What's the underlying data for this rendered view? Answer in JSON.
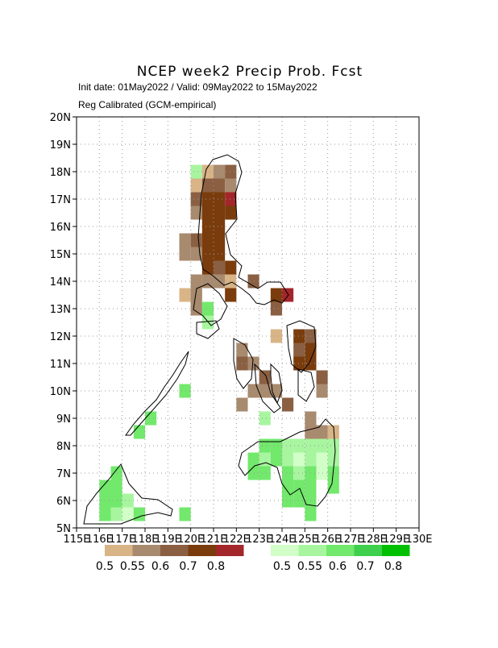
{
  "map": {
    "title": "NCEP week2 Precip Prob. Fcst",
    "subtitle": "Init date: 01May2022 / Valid: 09May2022 to 15May2022",
    "note": "Reg Calibrated (GCM-empirical)",
    "lonlim": [
      115,
      130
    ],
    "latlim": [
      5,
      20
    ],
    "lon_ticks": [
      {
        "value": 115,
        "label": "115E"
      },
      {
        "value": 116,
        "label": "116E"
      },
      {
        "value": 117,
        "label": "117E"
      },
      {
        "value": 118,
        "label": "118E"
      },
      {
        "value": 119,
        "label": "119E"
      },
      {
        "value": 120,
        "label": "120E"
      },
      {
        "value": 121,
        "label": "121E"
      },
      {
        "value": 122,
        "label": "122E"
      },
      {
        "value": 123,
        "label": "123E"
      },
      {
        "value": 124,
        "label": "124E"
      },
      {
        "value": 125,
        "label": "125E"
      },
      {
        "value": 126,
        "label": "126E"
      },
      {
        "value": 127,
        "label": "127E"
      },
      {
        "value": 128,
        "label": "128E"
      },
      {
        "value": 129,
        "label": "129E"
      },
      {
        "value": 130,
        "label": "130E"
      }
    ],
    "lat_ticks": [
      {
        "value": 5,
        "label": "5N"
      },
      {
        "value": 6,
        "label": "6N"
      },
      {
        "value": 7,
        "label": "7N"
      },
      {
        "value": 8,
        "label": "8N"
      },
      {
        "value": 9,
        "label": "9N"
      },
      {
        "value": 10,
        "label": "10N"
      },
      {
        "value": 11,
        "label": "11N"
      },
      {
        "value": 12,
        "label": "12N"
      },
      {
        "value": 13,
        "label": "13N"
      },
      {
        "value": 14,
        "label": "14N"
      },
      {
        "value": 15,
        "label": "15N"
      },
      {
        "value": 16,
        "label": "16N"
      },
      {
        "value": 17,
        "label": "17N"
      },
      {
        "value": 18,
        "label": "18N"
      },
      {
        "value": 19,
        "label": "19N"
      },
      {
        "value": 20,
        "label": "20N"
      }
    ],
    "legends": [
      {
        "colors": [
          "#d8b487",
          "#a88a6e",
          "#8a5f42",
          "#7a3c0c",
          "#a3262b"
        ],
        "labels": [
          "0.5",
          "0.55",
          "0.6",
          "0.7",
          "0.8"
        ]
      },
      {
        "colors": [
          "#d2ffc8",
          "#a8f5a0",
          "#72e86c",
          "#3ed04c",
          "#00c000"
        ],
        "labels": [
          "0.5",
          "0.55",
          "0.6",
          "0.7",
          "0.8"
        ]
      }
    ],
    "cell_size": 0.5,
    "cells": [
      [
        120.25,
        18,
        1,
        1
      ],
      [
        120.75,
        18,
        0,
        0
      ],
      [
        121.25,
        18,
        0,
        1
      ],
      [
        121.75,
        18,
        0,
        2
      ],
      [
        120.25,
        17.5,
        0,
        0
      ],
      [
        120.75,
        17.5,
        0,
        2
      ],
      [
        121.25,
        17.5,
        0,
        2
      ],
      [
        121.75,
        17.5,
        0,
        1
      ],
      [
        120.25,
        17,
        0,
        2
      ],
      [
        120.75,
        17,
        0,
        3
      ],
      [
        121.25,
        17,
        0,
        3
      ],
      [
        121.75,
        17,
        0,
        4
      ],
      [
        120.25,
        16.5,
        0,
        1
      ],
      [
        120.75,
        16.5,
        0,
        3
      ],
      [
        121.25,
        16.5,
        0,
        3
      ],
      [
        121.75,
        16.5,
        0,
        3
      ],
      [
        120.75,
        16,
        0,
        3
      ],
      [
        121.25,
        16,
        0,
        3
      ],
      [
        119.75,
        15.5,
        0,
        1
      ],
      [
        120.25,
        15.5,
        0,
        2
      ],
      [
        120.75,
        15.5,
        0,
        3
      ],
      [
        121.25,
        15.5,
        0,
        3
      ],
      [
        119.75,
        15,
        0,
        1
      ],
      [
        120.25,
        15,
        0,
        1
      ],
      [
        120.75,
        15,
        0,
        3
      ],
      [
        121.25,
        15,
        0,
        3
      ],
      [
        120.75,
        14.5,
        0,
        3
      ],
      [
        121.25,
        14.5,
        0,
        2
      ],
      [
        121.75,
        14.5,
        0,
        3
      ],
      [
        120.25,
        14,
        0,
        1
      ],
      [
        120.75,
        14,
        0,
        1
      ],
      [
        121.25,
        14,
        0,
        1
      ],
      [
        121.75,
        14,
        0,
        0
      ],
      [
        122.75,
        14,
        0,
        2
      ],
      [
        119.75,
        13.5,
        0,
        0
      ],
      [
        120.25,
        13.5,
        0,
        1
      ],
      [
        121.75,
        13.5,
        0,
        3
      ],
      [
        123.75,
        13.5,
        0,
        3
      ],
      [
        124.25,
        13.5,
        0,
        4
      ],
      [
        120.25,
        13,
        0,
        1
      ],
      [
        120.75,
        13,
        1,
        2
      ],
      [
        123.75,
        13,
        0,
        2
      ],
      [
        120.75,
        12.5,
        1,
        1
      ],
      [
        123.75,
        12,
        0,
        0
      ],
      [
        124.75,
        12,
        0,
        3
      ],
      [
        125.25,
        12,
        0,
        2
      ],
      [
        122.25,
        11.5,
        0,
        1
      ],
      [
        124.75,
        11.5,
        0,
        2
      ],
      [
        125.25,
        11.5,
        0,
        3
      ],
      [
        122.25,
        11,
        0,
        2
      ],
      [
        122.75,
        11,
        0,
        1
      ],
      [
        124.75,
        11,
        0,
        3
      ],
      [
        125.25,
        11,
        0,
        3
      ],
      [
        123.25,
        10.5,
        0,
        2
      ],
      [
        125.75,
        10.5,
        0,
        2
      ],
      [
        122.75,
        10,
        0,
        1
      ],
      [
        123.25,
        10,
        0,
        1
      ],
      [
        123.75,
        10,
        0,
        1
      ],
      [
        125.75,
        10,
        0,
        1
      ],
      [
        122.25,
        9.5,
        0,
        1
      ],
      [
        124.25,
        9.5,
        0,
        2
      ],
      [
        123.25,
        9,
        1,
        1
      ],
      [
        125.25,
        9,
        0,
        1
      ],
      [
        125.25,
        8.5,
        0,
        1
      ],
      [
        125.75,
        8.5,
        0,
        1
      ],
      [
        126.25,
        8.5,
        0,
        0
      ],
      [
        123.25,
        8,
        1,
        2
      ],
      [
        123.75,
        8,
        1,
        2
      ],
      [
        124.25,
        8,
        1,
        1
      ],
      [
        124.75,
        8,
        1,
        1
      ],
      [
        125.25,
        8,
        1,
        1
      ],
      [
        125.75,
        8,
        1,
        1
      ],
      [
        126.25,
        8,
        1,
        1
      ],
      [
        122.75,
        7.5,
        1,
        2
      ],
      [
        123.25,
        7.5,
        1,
        1
      ],
      [
        123.75,
        7.5,
        1,
        2
      ],
      [
        124.25,
        7.5,
        1,
        1
      ],
      [
        124.75,
        7.5,
        1,
        0
      ],
      [
        125.25,
        7.5,
        1,
        1
      ],
      [
        125.75,
        7.5,
        1,
        0
      ],
      [
        126.25,
        7.5,
        1,
        1
      ],
      [
        122.75,
        7,
        1,
        2
      ],
      [
        123.25,
        7,
        1,
        2
      ],
      [
        124.25,
        7,
        1,
        2
      ],
      [
        124.75,
        7,
        1,
        1
      ],
      [
        125.25,
        7,
        1,
        2
      ],
      [
        125.75,
        7,
        1,
        0
      ],
      [
        126.25,
        7,
        1,
        2
      ],
      [
        124.25,
        6.5,
        1,
        2
      ],
      [
        124.75,
        6.5,
        1,
        2
      ],
      [
        125.25,
        6.5,
        1,
        2
      ],
      [
        126.25,
        6.5,
        1,
        2
      ],
      [
        124.25,
        6,
        1,
        2
      ],
      [
        124.75,
        6,
        1,
        2
      ],
      [
        125.25,
        6,
        1,
        2
      ],
      [
        125.25,
        5.5,
        1,
        2
      ],
      [
        119.75,
        10,
        1,
        2
      ],
      [
        118.25,
        9,
        1,
        2
      ],
      [
        117.75,
        8.5,
        1,
        2
      ],
      [
        116.75,
        7,
        1,
        2
      ],
      [
        116.25,
        6.5,
        1,
        2
      ],
      [
        116.75,
        6.5,
        1,
        2
      ],
      [
        116.25,
        6,
        1,
        2
      ],
      [
        116.75,
        6,
        1,
        2
      ],
      [
        117.25,
        6,
        1,
        1
      ],
      [
        116.25,
        5.5,
        1,
        2
      ],
      [
        116.75,
        5.5,
        1,
        1
      ],
      [
        117.25,
        5.5,
        1,
        0
      ],
      [
        117.75,
        5.5,
        1,
        2
      ],
      [
        119.75,
        5.5,
        1,
        2
      ]
    ]
  }
}
